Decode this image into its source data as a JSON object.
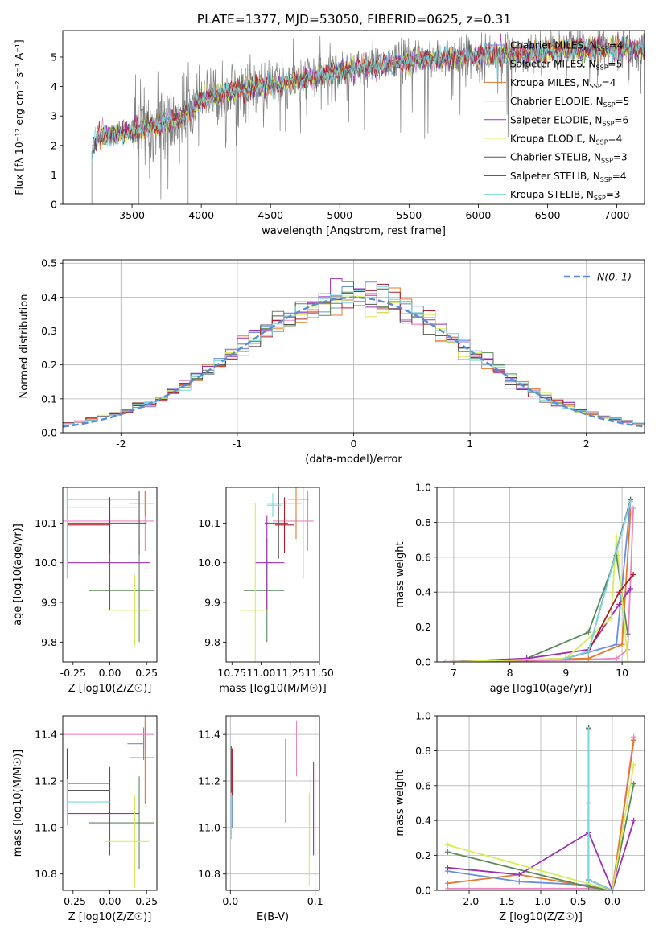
{
  "figure": {
    "title": "PLATE=1377, MJD=53050, FIBERID=0625, z=0.31"
  },
  "models": [
    {
      "key": "chab_miles",
      "label": "Chabrier MILES, N",
      "sub": "SSP",
      "tail": "=4",
      "color": "#6a8fe0"
    },
    {
      "key": "salp_miles",
      "label": "Salpeter MILES, N",
      "sub": "SSP",
      "tail": "=5",
      "color": "#e887c4"
    },
    {
      "key": "krou_miles",
      "label": "Kroupa MILES, N",
      "sub": "SSP",
      "tail": "=4",
      "color": "#e8782a"
    },
    {
      "key": "chab_elodie",
      "label": "Chabrier ELODIE, N",
      "sub": "SSP",
      "tail": "=5",
      "color": "#5a8a5a"
    },
    {
      "key": "salp_elodie",
      "label": "Salpeter ELODIE, N",
      "sub": "SSP",
      "tail": "=6",
      "color": "#9b30b0"
    },
    {
      "key": "krou_elodie",
      "label": "Kroupa ELODIE, N",
      "sub": "SSP",
      "tail": "=4",
      "color": "#d8ec5a"
    },
    {
      "key": "chab_stelib",
      "label": "Chabrier STELIB, N",
      "sub": "SSP",
      "tail": "=3",
      "color": "#555555"
    },
    {
      "key": "salp_stelib",
      "label": "Salpeter STELIB, N",
      "sub": "SSP",
      "tail": "=4",
      "color": "#b01c28"
    },
    {
      "key": "krou_stelib",
      "label": "Kroupa STELIB, N",
      "sub": "SSP",
      "tail": "=3",
      "color": "#7ad6e0"
    }
  ],
  "chart_data": [
    {
      "id": "spectrum",
      "type": "line",
      "xlabel": "wavelength [Angstrom, rest frame]",
      "ylabel": "Flux [fλ 10⁻¹⁷ erg cm⁻² s⁻¹ A⁻¹]",
      "xlim": [
        3000,
        7200
      ],
      "ylim": [
        0,
        5.9
      ],
      "xticks": [
        3500,
        4000,
        4500,
        5000,
        5500,
        6000,
        6500,
        7000
      ],
      "yticks": [
        0,
        1,
        2,
        3,
        4,
        5
      ],
      "continuum": [
        [
          3210,
          1.8
        ],
        [
          3250,
          2.3
        ],
        [
          3400,
          2.35
        ],
        [
          3600,
          2.6
        ],
        [
          3800,
          2.8
        ],
        [
          3950,
          3.3
        ],
        [
          4000,
          3.5
        ],
        [
          4200,
          3.8
        ],
        [
          4400,
          4.0
        ],
        [
          4600,
          4.1
        ],
        [
          4800,
          4.3
        ],
        [
          5000,
          4.5
        ],
        [
          5200,
          4.7
        ],
        [
          5400,
          4.8
        ],
        [
          5600,
          4.9
        ],
        [
          5800,
          5.0
        ],
        [
          6000,
          5.05
        ],
        [
          6200,
          5.1
        ],
        [
          6400,
          5.15
        ],
        [
          6600,
          5.25
        ],
        [
          6800,
          5.3
        ],
        [
          7000,
          5.3
        ],
        [
          7200,
          5.25
        ]
      ],
      "data_color": "#808080"
    },
    {
      "id": "residuals",
      "type": "histogram",
      "xlabel": "(data-model)/error",
      "ylabel": "Normed distribution",
      "xlim": [
        -2.5,
        2.5
      ],
      "ylim": [
        0,
        0.51
      ],
      "xticks": [
        -2,
        -1,
        0,
        1,
        2
      ],
      "yticks": [
        0.0,
        0.1,
        0.2,
        0.3,
        0.4,
        0.5
      ],
      "gaussian_label": "N(0, 1)",
      "gaussian_color": "#5b8bd6",
      "bin_width": 0.1,
      "grid": true,
      "legend": "top-right"
    },
    {
      "id": "age_vs_z",
      "type": "errorbar",
      "xlabel": "Z [log10(Z/Z☉)]",
      "ylabel": "age  [log10(age/yr)]",
      "xlim": [
        -0.32,
        0.32
      ],
      "ylim": [
        9.75,
        10.19
      ],
      "xticks": [
        -0.25,
        0.0,
        0.25
      ],
      "yticks": [
        9.8,
        9.9,
        10.0,
        10.1
      ],
      "points": [
        {
          "x": -0.29,
          "y": 10.16,
          "xerr": [
            0,
            0.49
          ],
          "yerr": 0.2,
          "c": "#6a8fe0"
        },
        {
          "x": 0.24,
          "y": 10.105,
          "xerr": [
            0.56,
            0.06
          ],
          "yerr": 0.075,
          "c": "#e887c4"
        },
        {
          "x": 0.24,
          "y": 10.15,
          "xerr": [
            0.11,
            0.06
          ],
          "yerr": 0.03,
          "c": "#e8782a"
        },
        {
          "x": 0.2,
          "y": 9.93,
          "xerr": [
            0.34,
            0.1
          ],
          "yerr": 0.13,
          "c": "#5a8a5a"
        },
        {
          "x": 0.0,
          "y": 10.0,
          "xerr": [
            0.29,
            0.27
          ],
          "yerr": 0.12,
          "c": "#9b30b0"
        },
        {
          "x": 0.17,
          "y": 9.88,
          "xerr": [
            0.2,
            0.1
          ],
          "yerr": 0.09,
          "c": "#d8ec5a"
        },
        {
          "x": 0.2,
          "y": 10.1,
          "xerr": [
            0.49,
            0.05
          ],
          "yerr": 0.08,
          "c": "#555555"
        },
        {
          "x": 0.0,
          "y": 10.095,
          "xerr": [
            0.29,
            0.0
          ],
          "yerr": 0.07,
          "c": "#b01c28"
        },
        {
          "x": -0.29,
          "y": 10.14,
          "xerr": [
            0,
            0.5
          ],
          "yerr": 0.18,
          "c": "#7ad6e0"
        }
      ]
    },
    {
      "id": "age_vs_mass",
      "type": "errorbar",
      "xlabel": "mass [log10(M/M☉)]",
      "ylabel": "",
      "xlim": [
        10.7,
        11.5
      ],
      "ylim": [
        9.75,
        10.19
      ],
      "xticks": [
        10.75,
        11.0,
        11.25,
        11.5
      ],
      "xticklabels": [
        "10.75",
        "11.00",
        "11.25",
        "11.50"
      ],
      "yticks": [
        9.8,
        9.9,
        10.0,
        10.1
      ],
      "points": [
        {
          "x": 11.36,
          "y": 10.16,
          "xerr": [
            0.13,
            0.05
          ],
          "yerr": 0.2,
          "c": "#6a8fe0"
        },
        {
          "x": 11.4,
          "y": 10.105,
          "xerr": [
            0.3,
            0.05
          ],
          "yerr": 0.075,
          "c": "#e887c4"
        },
        {
          "x": 11.3,
          "y": 10.15,
          "xerr": [
            0.25,
            0.05
          ],
          "yerr": 0.09,
          "c": "#e8782a"
        },
        {
          "x": 11.05,
          "y": 9.93,
          "xerr": [
            0.2,
            0.15
          ],
          "yerr": 0.13,
          "c": "#5a8a5a"
        },
        {
          "x": 11.05,
          "y": 10.0,
          "xerr": [
            0.1,
            0.15
          ],
          "yerr": 0.12,
          "c": "#9b30b0"
        },
        {
          "x": 10.95,
          "y": 9.88,
          "xerr": [
            0.12,
            0.1
          ],
          "yerr": 0.27,
          "c": "#d8ec5a"
        },
        {
          "x": 11.15,
          "y": 10.1,
          "xerr": [
            0.12,
            0.08
          ],
          "yerr": 0.09,
          "c": "#555555"
        },
        {
          "x": 11.2,
          "y": 10.095,
          "xerr": [
            0.08,
            0.08
          ],
          "yerr": 0.07,
          "c": "#b01c28"
        },
        {
          "x": 11.1,
          "y": 10.145,
          "xerr": [
            0.05,
            0.08
          ],
          "yerr": 0.03,
          "c": "#7ad6e0"
        }
      ]
    },
    {
      "id": "massweight_vs_age",
      "type": "line",
      "xlabel": "age  [log10(age/yr)]",
      "ylabel": "mass weight",
      "xlim": [
        6.7,
        10.4
      ],
      "ylim": [
        0,
        1.0
      ],
      "xticks": [
        7,
        8,
        9,
        10
      ],
      "yticks": [
        0.0,
        0.2,
        0.4,
        0.6,
        0.8,
        1.0
      ],
      "grid": true,
      "series": [
        {
          "c": "#6a8fe0",
          "x": [
            6.85,
            9.0,
            9.9,
            10.15
          ],
          "y": [
            0.0,
            0.02,
            0.1,
            0.93
          ]
        },
        {
          "c": "#e887c4",
          "x": [
            6.85,
            9.0,
            9.9,
            10.1,
            10.2
          ],
          "y": [
            0.0,
            0.01,
            0.02,
            0.07,
            0.88
          ]
        },
        {
          "c": "#e8782a",
          "x": [
            6.85,
            9.4,
            10.0,
            10.15
          ],
          "y": [
            0.0,
            0.02,
            0.1,
            0.86
          ]
        },
        {
          "c": "#5a8a5a",
          "x": [
            6.85,
            8.3,
            9.4,
            9.9,
            10.1
          ],
          "y": [
            0.0,
            0.02,
            0.17,
            0.61,
            0.16
          ]
        },
        {
          "c": "#9b30b0",
          "x": [
            6.85,
            8.3,
            9.4,
            9.95,
            10.1,
            10.15
          ],
          "y": [
            0.0,
            0.02,
            0.07,
            0.33,
            0.4,
            0.42
          ]
        },
        {
          "c": "#d8ec5a",
          "x": [
            6.85,
            9.0,
            9.8,
            9.9,
            10.1
          ],
          "y": [
            0.0,
            0.02,
            0.25,
            0.72,
            0.01
          ]
        },
        {
          "c": "#555555",
          "x": [
            9.0,
            9.4,
            10.15
          ],
          "y": [
            0.02,
            0.06,
            0.93
          ]
        },
        {
          "c": "#b01c28",
          "x": [
            9.4,
            9.95,
            10.2
          ],
          "y": [
            0.06,
            0.4,
            0.5
          ]
        },
        {
          "c": "#7ad6e0",
          "x": [
            9.0,
            9.4,
            10.15
          ],
          "y": [
            0.02,
            0.06,
            0.92
          ]
        }
      ]
    },
    {
      "id": "mass_vs_z",
      "type": "errorbar",
      "xlabel": "Z [log10(Z/Z☉)]",
      "ylabel": "mass [log10(M/M☉)]",
      "xlim": [
        -0.32,
        0.32
      ],
      "ylim": [
        10.73,
        11.48
      ],
      "xticks": [
        -0.25,
        0.0,
        0.25
      ],
      "yticks": [
        10.8,
        11.0,
        11.2,
        11.4
      ],
      "points": [
        {
          "x": 0.23,
          "y": 11.36,
          "xerr": [
            0.11,
            0.0
          ],
          "yerr": 0.07,
          "c": "#6a8fe0"
        },
        {
          "x": 0.24,
          "y": 11.4,
          "xerr": [
            0.56,
            0.06
          ],
          "yerr": 0.06,
          "c": "#e887c4"
        },
        {
          "x": 0.24,
          "y": 11.3,
          "xerr": [
            0.11,
            0.06
          ],
          "yerr": 0.2,
          "c": "#e8782a"
        },
        {
          "x": 0.2,
          "y": 11.02,
          "xerr": [
            0.34,
            0.1
          ],
          "yerr": 0.2,
          "c": "#5a8a5a"
        },
        {
          "x": 0.0,
          "y": 11.06,
          "xerr": [
            0.29,
            0.2
          ],
          "yerr": 0.18,
          "c": "#9b30b0"
        },
        {
          "x": 0.17,
          "y": 10.94,
          "xerr": [
            0.2,
            0.1
          ],
          "yerr": 0.2,
          "c": "#d8ec5a"
        },
        {
          "x": 0.0,
          "y": 11.16,
          "xerr": [
            0.29,
            0.0
          ],
          "yerr": 0.1,
          "c": "#555555"
        },
        {
          "x": -0.29,
          "y": 11.19,
          "xerr": [
            0,
            0.29
          ],
          "yerr": 0.15,
          "c": "#b01c28"
        },
        {
          "x": -0.29,
          "y": 11.11,
          "xerr": [
            0,
            0.29
          ],
          "yerr": 0.1,
          "c": "#7ad6e0"
        }
      ]
    },
    {
      "id": "mass_vs_ebv",
      "type": "errorbar",
      "xlabel": "E(B-V)",
      "ylabel": "",
      "xlim": [
        -0.005,
        0.105
      ],
      "ylim": [
        10.73,
        11.48
      ],
      "xticks": [
        0.0,
        0.1
      ],
      "yticks": [
        10.8,
        11.0,
        11.2,
        11.4
      ],
      "grid": true,
      "points": [
        {
          "x": 0.002,
          "y": 11.15,
          "yerr": 0.15,
          "c": "#6a8fe0"
        },
        {
          "x": 0.078,
          "y": 11.34,
          "yerr": 0.12,
          "c": "#e887c4"
        },
        {
          "x": 0.065,
          "y": 11.2,
          "yerr": 0.18,
          "c": "#e8782a"
        },
        {
          "x": 0.095,
          "y": 11.05,
          "yerr": 0.18,
          "c": "#5a8a5a"
        },
        {
          "x": 0.098,
          "y": 11.08,
          "yerr": 0.2,
          "c": "#9b30b0"
        },
        {
          "x": 0.093,
          "y": 10.95,
          "yerr": 0.2,
          "c": "#d8ec5a"
        },
        {
          "x": 0.001,
          "y": 11.25,
          "yerr": 0.1,
          "c": "#555555"
        },
        {
          "x": 0.002,
          "y": 11.24,
          "yerr": 0.1,
          "c": "#b01c28"
        },
        {
          "x": 0.001,
          "y": 11.05,
          "yerr": 0.1,
          "c": "#7ad6e0"
        }
      ]
    },
    {
      "id": "massweight_vs_z",
      "type": "line",
      "xlabel": "Z [log10(Z/Z☉)]",
      "ylabel": "mass weight",
      "xlim": [
        -2.45,
        0.45
      ],
      "ylim": [
        0,
        1.0
      ],
      "xticks": [
        -2.0,
        -1.5,
        -1.0,
        -0.5,
        0.0
      ],
      "yticks": [
        0.0,
        0.2,
        0.4,
        0.6,
        0.8,
        1.0
      ],
      "grid": true,
      "series": [
        {
          "c": "#6a8fe0",
          "x": [
            -2.3,
            -1.3,
            -0.33,
            0.0,
            0.3
          ],
          "y": [
            0.11,
            0.05,
            0.03,
            0.0,
            0.86
          ]
        },
        {
          "c": "#e887c4",
          "x": [
            -2.3,
            -0.33,
            0.0,
            0.3
          ],
          "y": [
            0.01,
            0.01,
            0.0,
            0.88
          ]
        },
        {
          "c": "#e8782a",
          "x": [
            -2.3,
            -1.3,
            0.0,
            0.3
          ],
          "y": [
            0.04,
            0.09,
            0.0,
            0.86
          ]
        },
        {
          "c": "#5a8a5a",
          "x": [
            -2.3,
            -0.33,
            0.0,
            0.3
          ],
          "y": [
            0.22,
            0.02,
            0.0,
            0.61
          ]
        },
        {
          "c": "#9b30b0",
          "x": [
            -2.3,
            -1.3,
            -0.33,
            0.0,
            0.3
          ],
          "y": [
            0.13,
            0.09,
            0.33,
            0.0,
            0.4
          ]
        },
        {
          "c": "#d8ec5a",
          "x": [
            -2.3,
            0.0,
            0.3
          ],
          "y": [
            0.26,
            0.0,
            0.72
          ]
        },
        {
          "c": "#555555",
          "x": [
            -0.33,
            -0.33,
            0.0
          ],
          "y": [
            0.93,
            0.06,
            0.0
          ]
        },
        {
          "c": "#b01c28",
          "x": [
            -0.33,
            -0.33,
            0.0
          ],
          "y": [
            0.5,
            0.06,
            0.0
          ]
        },
        {
          "c": "#7ad6e0",
          "x": [
            -0.33,
            -0.33,
            0.0
          ],
          "y": [
            0.92,
            0.06,
            0.0
          ]
        }
      ]
    }
  ]
}
